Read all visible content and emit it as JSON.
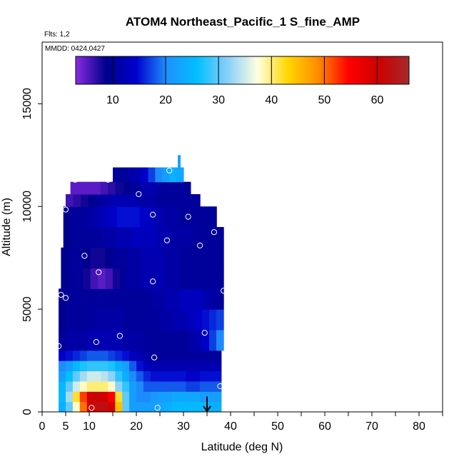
{
  "chart_data": {
    "type": "heatmap",
    "title": "ATOM4 Northeast_Pacific_1 S_fine_AMP",
    "flights_label": "Flts: 1,2",
    "dates_label": "MMDD: 0424,0427",
    "xlabel": "Latitude (deg N)",
    "ylabel": "Altitude (m)",
    "xlim": [
      0,
      85
    ],
    "ylim": [
      0,
      18000
    ],
    "x_ticks": [
      0,
      5,
      10,
      20,
      30,
      40,
      50,
      60,
      70,
      80
    ],
    "x_minor_ticks": [
      15,
      25,
      35,
      45,
      55,
      65,
      75,
      85
    ],
    "y_ticks": [
      0,
      5000,
      10000,
      15000
    ],
    "colorbar": {
      "range": [
        3,
        66
      ],
      "ticks": [
        10,
        20,
        30,
        40,
        50,
        60
      ],
      "colors": [
        "#8a2be2",
        "#00008b",
        "#0000cd",
        "#1e90ff",
        "#00bfff",
        "#87cefa",
        "#ffffe0",
        "#ffd700",
        "#ff8c00",
        "#ff0000",
        "#cd0000",
        "#a52a2a"
      ]
    },
    "altitude_bins": [
      {
        "alt": [
          0,
          500
        ],
        "lat": [
          3.5,
          38
        ],
        "values": [
          24,
          30,
          38,
          50,
          60,
          62,
          62,
          60,
          45,
          30,
          22,
          22,
          22,
          22,
          23,
          24,
          25,
          25,
          25,
          25,
          25,
          24,
          24
        ]
      },
      {
        "alt": [
          500,
          1000
        ],
        "lat": [
          3.5,
          38
        ],
        "values": [
          25,
          33,
          42,
          52,
          60,
          61,
          60,
          55,
          42,
          30,
          22,
          20,
          20,
          21,
          22,
          22,
          23,
          23,
          23,
          23,
          22,
          22,
          22
        ]
      },
      {
        "alt": [
          1000,
          1500
        ],
        "lat": [
          3.5,
          38
        ],
        "values": [
          25,
          30,
          35,
          38,
          40,
          40,
          40,
          38,
          32,
          28,
          22,
          20,
          18,
          18,
          18,
          18,
          18,
          18,
          17,
          17,
          18,
          18,
          18
        ]
      },
      {
        "alt": [
          1500,
          2000
        ],
        "lat": [
          3.5,
          38
        ],
        "values": [
          22,
          26,
          30,
          33,
          35,
          35,
          34,
          32,
          28,
          24,
          20,
          18,
          16,
          15,
          15,
          15,
          15,
          15,
          14,
          14,
          15,
          15,
          15
        ]
      },
      {
        "alt": [
          2000,
          2500
        ],
        "lat": [
          3.5,
          38
        ],
        "values": [
          20,
          22,
          25,
          27,
          28,
          28,
          28,
          27,
          24,
          22,
          18,
          15,
          13,
          12,
          12,
          12,
          12,
          12,
          12,
          12,
          12,
          12,
          12
        ]
      },
      {
        "alt": [
          2500,
          3000
        ],
        "lat": [
          3.5,
          38
        ],
        "values": [
          14,
          15,
          16,
          17,
          18,
          18,
          18,
          17,
          16,
          15,
          13,
          12,
          11,
          10,
          10,
          10,
          10,
          10,
          10,
          10,
          10,
          10,
          10
        ]
      },
      {
        "alt": [
          3000,
          4000
        ],
        "lat": [
          3.5,
          38.5
        ],
        "values": [
          10,
          11,
          11,
          11,
          12,
          12,
          12,
          12,
          12,
          11,
          11,
          11,
          10,
          10,
          10,
          10,
          10,
          10,
          11,
          12,
          14,
          17,
          20
        ]
      },
      {
        "alt": [
          4000,
          5000
        ],
        "lat": [
          3.5,
          38.5
        ],
        "values": [
          9,
          10,
          10,
          10,
          10,
          11,
          11,
          11,
          11,
          10,
          10,
          10,
          10,
          10,
          11,
          11,
          12,
          12,
          13,
          14,
          15,
          16,
          17
        ]
      },
      {
        "alt": [
          5000,
          6000
        ],
        "lat": [
          3.5,
          38.5
        ],
        "values": [
          9,
          10,
          10,
          10,
          10,
          10,
          10,
          10,
          10,
          10,
          10,
          10,
          10,
          11,
          11,
          12,
          12,
          13,
          13,
          13,
          12,
          11,
          10
        ]
      },
      {
        "alt": [
          6000,
          7000
        ],
        "lat": [
          4,
          38.5
        ],
        "values": [
          9,
          10,
          10,
          8,
          6,
          5,
          6,
          8,
          10,
          11,
          11,
          12,
          12,
          12,
          11,
          11,
          10,
          10,
          10,
          10,
          10,
          10
        ]
      },
      {
        "alt": [
          7000,
          8000
        ],
        "lat": [
          4,
          38.5
        ],
        "values": [
          9,
          10,
          10,
          9,
          8,
          8,
          9,
          10,
          10,
          11,
          11,
          12,
          12,
          12,
          11,
          11,
          10,
          10,
          10,
          10,
          10,
          10
        ]
      },
      {
        "alt": [
          8000,
          9000
        ],
        "lat": [
          4.5,
          38.5
        ],
        "values": [
          9,
          10,
          10,
          10,
          10,
          11,
          11,
          12,
          12,
          13,
          13,
          13,
          12,
          12,
          11,
          11,
          11,
          10,
          10,
          10,
          10
        ]
      },
      {
        "alt": [
          9000,
          10000
        ],
        "lat": [
          4.5,
          37
        ],
        "values": [
          9,
          10,
          10,
          11,
          12,
          13,
          14,
          15,
          15,
          15,
          14,
          13,
          12,
          11,
          11,
          10,
          10,
          10,
          10,
          10
        ]
      },
      {
        "alt": [
          10000,
          10600
        ],
        "lat": [
          5,
          33.5
        ],
        "values": [
          6,
          7,
          8,
          9,
          10,
          11,
          12,
          12,
          12,
          12,
          11,
          11,
          10,
          10,
          10,
          10,
          10,
          10
        ]
      },
      {
        "alt": [
          10600,
          11200
        ],
        "lat": [
          6,
          31.5
        ],
        "values": [
          5,
          5,
          5,
          5,
          6,
          7,
          8,
          9,
          10,
          11,
          12,
          11,
          10,
          10,
          10,
          10
        ]
      },
      {
        "alt": [
          11200,
          11900
        ],
        "lat": [
          15,
          30
        ],
        "values": [
          10,
          10,
          11,
          12,
          14,
          17,
          20,
          22,
          24,
          23
        ]
      },
      {
        "alt": [
          11900,
          12500
        ],
        "lat": [
          28.8,
          29.3
        ],
        "values": [
          22
        ]
      }
    ],
    "sample_points": [
      {
        "lat": 10.5,
        "alt": 200
      },
      {
        "lat": 24.5,
        "alt": 200
      },
      {
        "lat": 37.8,
        "alt": 1250
      },
      {
        "lat": 23.8,
        "alt": 2650
      },
      {
        "lat": 3.5,
        "alt": 3200
      },
      {
        "lat": 11.5,
        "alt": 3400
      },
      {
        "lat": 16.5,
        "alt": 3700
      },
      {
        "lat": 34.5,
        "alt": 3850
      },
      {
        "lat": 4.0,
        "alt": 5700
      },
      {
        "lat": 5.0,
        "alt": 5550
      },
      {
        "lat": 38.5,
        "alt": 5900
      },
      {
        "lat": 12.0,
        "alt": 6800
      },
      {
        "lat": 23.5,
        "alt": 6350
      },
      {
        "lat": 9.0,
        "alt": 7600
      },
      {
        "lat": 33.5,
        "alt": 8100
      },
      {
        "lat": 26.5,
        "alt": 8350
      },
      {
        "lat": 36.5,
        "alt": 8750
      },
      {
        "lat": 5.0,
        "alt": 9850
      },
      {
        "lat": 23.5,
        "alt": 9600
      },
      {
        "lat": 31.0,
        "alt": 9500
      },
      {
        "lat": 20.5,
        "alt": 10600
      },
      {
        "lat": 7.0,
        "alt": 11300
      },
      {
        "lat": 14.0,
        "alt": 11300
      },
      {
        "lat": 27.0,
        "alt": 11750
      }
    ],
    "arrow": {
      "lat": 35,
      "alt_from": 750,
      "alt_to": 0
    }
  }
}
